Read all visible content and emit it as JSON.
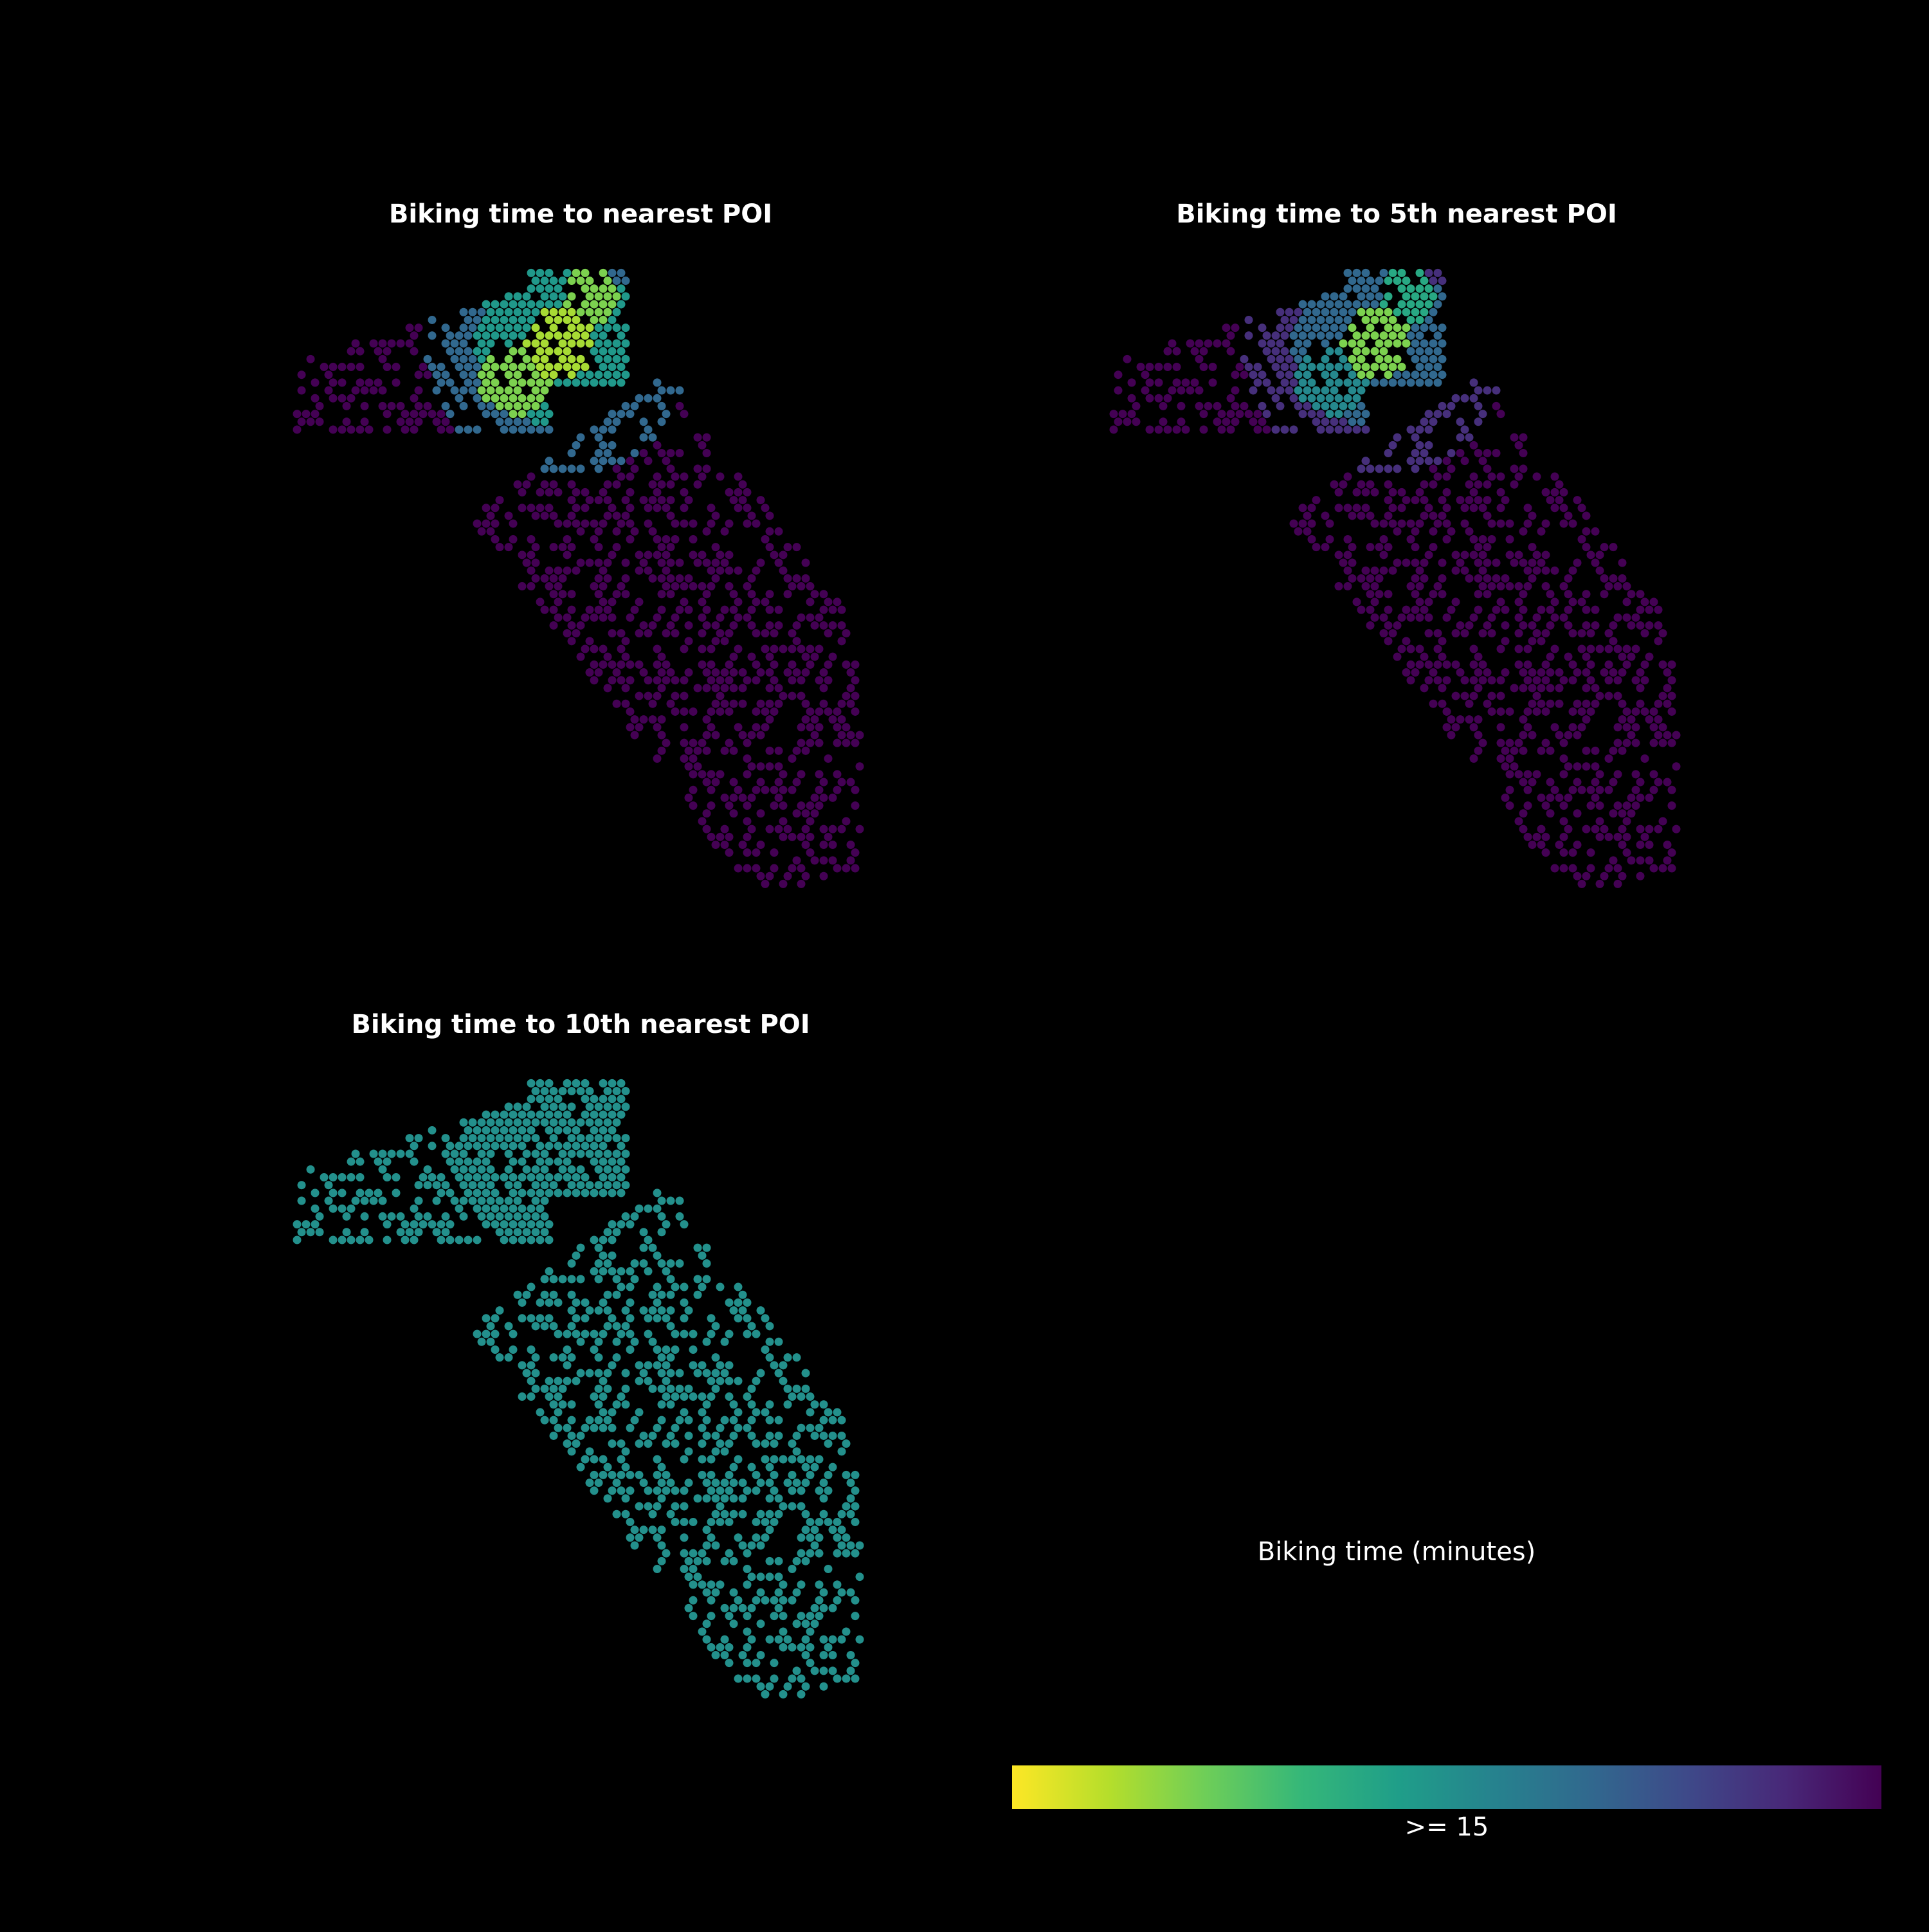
{
  "chart_data": [
    {
      "type": "heatmap",
      "title": "Biking time to nearest POI",
      "encoding": "hexbin map; color = biking time in minutes (viridis reversed, yellow = short, purple = long)",
      "color_range": [
        0,
        15
      ],
      "value_by_zone": {
        "downtown_core": 2,
        "north_arm": 3,
        "west_arm": 3,
        "inner_ring": 7,
        "mid_ring": 10,
        "outer": 15
      }
    },
    {
      "type": "heatmap",
      "title": "Biking time to 5th nearest POI",
      "encoding": "hexbin map; color = biking time in minutes",
      "color_range": [
        0,
        15
      ],
      "value_by_zone": {
        "downtown_core": 3,
        "north_arm": 6,
        "west_arm": 8,
        "inner_ring": 10,
        "mid_ring": 13,
        "outer": 15
      }
    },
    {
      "type": "heatmap",
      "title": "Biking time to 10th nearest POI",
      "encoding": "hexbin map; color = biking time in minutes",
      "color_range": [
        0,
        15
      ],
      "value_by_zone": {
        "downtown_core": 7.5,
        "north_arm": 7.5,
        "west_arm": 7.5,
        "inner_ring": 7.5,
        "mid_ring": 7.5,
        "outer": 7.5
      }
    }
  ],
  "colorbar": {
    "label": "Biking time (minutes)",
    "tick_label": ">= 15",
    "colormap": [
      "#fde725",
      "#b5de2b",
      "#6ece58",
      "#35b779",
      "#1f9e89",
      "#26828e",
      "#31688e",
      "#3e4989",
      "#482878",
      "#440154"
    ]
  },
  "background": "#000000"
}
